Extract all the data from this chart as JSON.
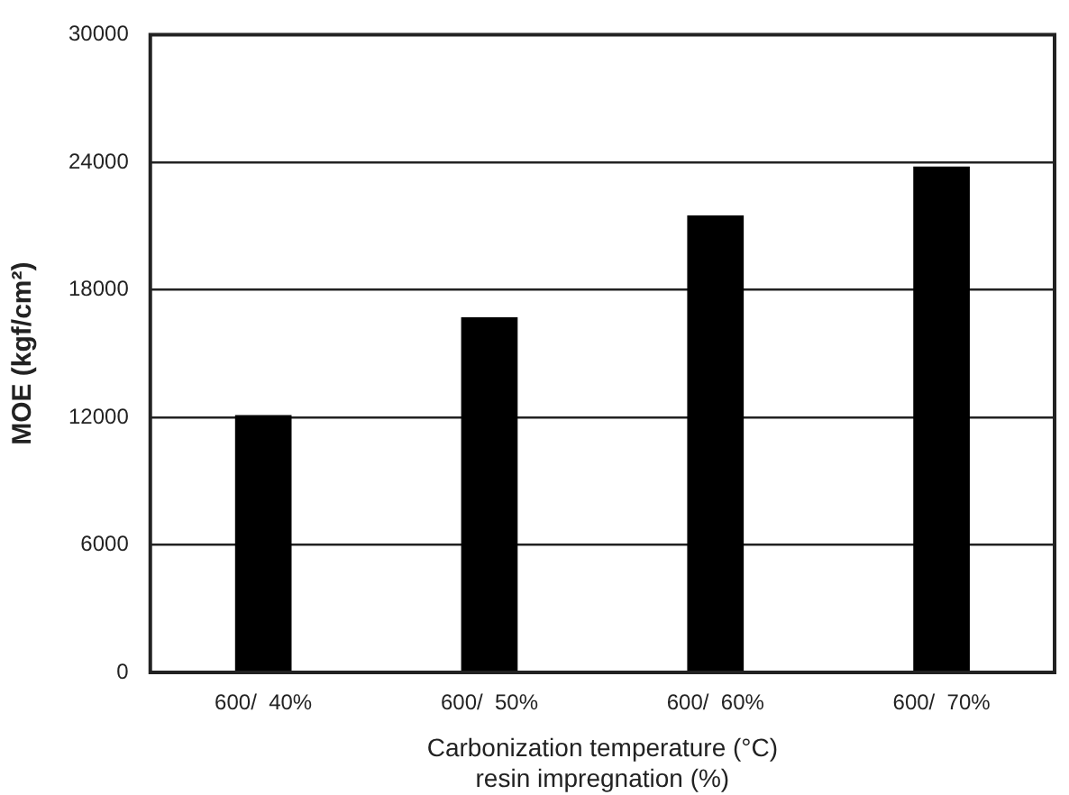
{
  "chart_data": {
    "type": "bar",
    "categories": [
      "600/  40%",
      "600/  50%",
      "600/  60%",
      "600/  70%"
    ],
    "values": [
      12100,
      16700,
      21500,
      23800
    ],
    "color": "#000000",
    "xlabel": "Carbonization temperature (°C)\nresin impregnation (%)",
    "ylabel": "MOE (kgf/cm²)",
    "ylim": [
      0,
      30000
    ],
    "yticks": [
      0,
      6000,
      12000,
      18000,
      24000,
      30000
    ],
    "grid": "y",
    "legend": false
  }
}
